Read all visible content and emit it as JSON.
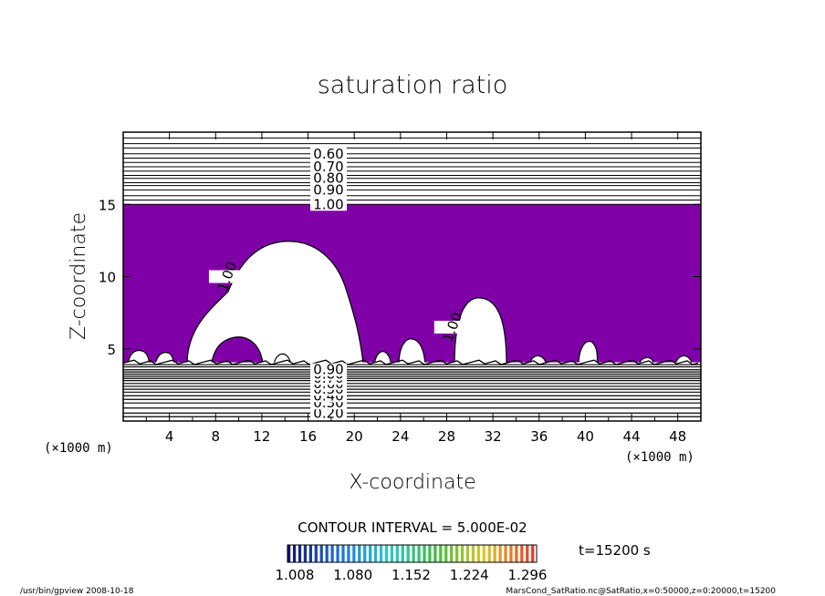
{
  "chart_data": {
    "type": "contour",
    "title": "saturation ratio",
    "xlabel": "X-coordinate",
    "ylabel": "Z-coordinate",
    "x_unit": "(×1000 m)",
    "z_unit": "(×1000 m)",
    "xlim": [
      0,
      50
    ],
    "ylim": [
      0,
      20
    ],
    "x_ticks": [
      "4",
      "8",
      "12",
      "16",
      "20",
      "24",
      "28",
      "32",
      "36",
      "40",
      "44",
      "48"
    ],
    "y_ticks": [
      "5",
      "10",
      "15"
    ],
    "fill_color": "#8000a8",
    "fill_region_z": [
      4,
      15
    ],
    "upper_contours": [
      {
        "level": "0.60",
        "z": 18.5
      },
      {
        "level": "0.70",
        "z": 17.6
      },
      {
        "level": "0.80",
        "z": 16.8
      },
      {
        "level": "0.90",
        "z": 16.0
      },
      {
        "level": "1.00",
        "z": 15.0
      }
    ],
    "upper_extra_lines_z": [
      19.6,
      19.2,
      18.9,
      18.2,
      17.9,
      17.3,
      17.0,
      16.5,
      16.3,
      15.6,
      15.3
    ],
    "lower_contours": [
      {
        "level": "0.20",
        "z": 0.55
      },
      {
        "level": "0.30",
        "z": 1.25
      },
      {
        "level": "0.40",
        "z": 1.75
      },
      {
        "level": "0.50",
        "z": 2.2
      },
      {
        "level": "0.60",
        "z": 2.6
      },
      {
        "level": "0.70",
        "z": 2.95
      },
      {
        "level": "0.80",
        "z": 3.25
      },
      {
        "level": "0.90",
        "z": 3.55
      }
    ],
    "lower_extra_lines_z": [
      0.3,
      0.9,
      1.5,
      2.0,
      2.4,
      2.8,
      3.1,
      3.4,
      3.75,
      3.9
    ],
    "inner_labels": [
      {
        "level": "1.00",
        "x": 9.0,
        "z": 10.0
      },
      {
        "level": "1.00",
        "x": 28.5,
        "z": 6.5
      }
    ],
    "contour_interval": "CONTOUR INTERVAL = 5.000E-02",
    "time_label": "t=15200 s",
    "colorbar": {
      "ticks": [
        "1.008",
        "1.080",
        "1.152",
        "1.224",
        "1.296"
      ],
      "range": [
        1.008,
        1.296
      ]
    }
  },
  "footer": {
    "left": "/usr/bin/gpview  2008-10-18",
    "right": "MarsCond_SatRatio.nc@SatRatio,x=0:50000,z=0:20000,t=15200"
  }
}
